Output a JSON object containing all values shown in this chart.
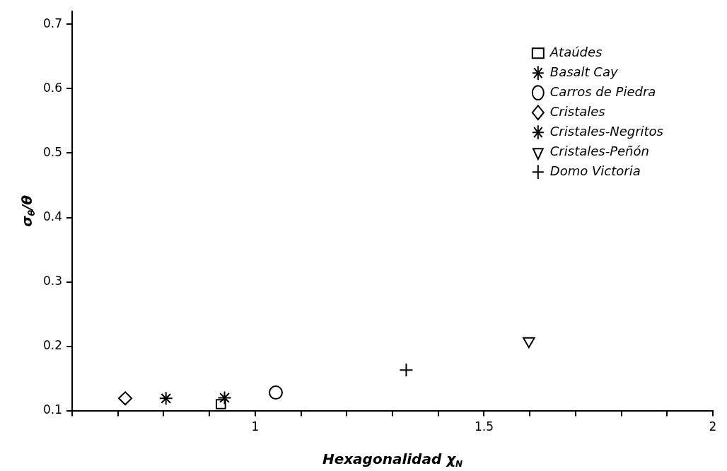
{
  "chart_data": {
    "type": "scatter",
    "xlabel": "Hexagonalidad χ$_{N}$",
    "ylabel": "σ$_{θ}$/θ",
    "xlim": [
      0.6,
      2
    ],
    "xticks": [
      {
        "value": 0.6,
        "label": null
      },
      {
        "value": 0.7,
        "label": null
      },
      {
        "value": 0.8,
        "label": null
      },
      {
        "value": 0.9,
        "label": null
      },
      1,
      {
        "value": 1.1,
        "label": null
      },
      {
        "value": 1.2,
        "label": null
      },
      {
        "value": 1.3,
        "label": null
      },
      {
        "value": 1.4,
        "label": null
      },
      1.5,
      {
        "value": 1.6,
        "label": null
      },
      {
        "value": 1.7,
        "label": null
      },
      {
        "value": 1.8,
        "label": null
      },
      {
        "value": 1.9,
        "label": null
      },
      2
    ],
    "ylim": [
      0.1,
      0.72
    ],
    "yticks": [
      0.1,
      0.2,
      0.3,
      0.4,
      0.5,
      0.6,
      0.7
    ],
    "grid": false,
    "legend": "top right",
    "series": [
      {
        "name": "Ataúdes",
        "color": "#000000",
        "marker": "square",
        "x": [
          0.925
        ],
        "values": [
          0.11
        ]
      },
      {
        "name": "Basalt Cay",
        "color": "#000000",
        "x": [
          0.805
        ],
        "values": [
          0.119
        ]
      },
      {
        "name": "Carros de Piedra",
        "color": "#000000",
        "marker": "circle",
        "x": [
          1.045
        ],
        "values": [
          0.128
        ]
      },
      {
        "name": "Cristales",
        "color": "#000000",
        "marker": "diamond",
        "x": [
          0.716
        ],
        "values": [
          0.119
        ]
      },
      {
        "name": "Cristales-Negritos",
        "color": "#000000",
        "x": [
          0.933
        ],
        "values": [
          0.12
        ]
      },
      {
        "name": "Cristales-Peñón",
        "color": "#000000",
        "marker": "triangle",
        "x": [
          1.598
        ],
        "values": [
          0.208
        ]
      },
      {
        "name": "Domo Victoria",
        "color": "#000000",
        "marker": "cross",
        "x": [
          1.33
        ],
        "values": [
          0.163
        ]
      }
    ]
  }
}
